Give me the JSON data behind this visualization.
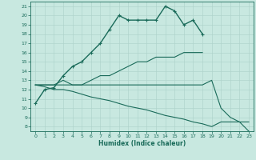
{
  "xlabel": "Humidex (Indice chaleur)",
  "bg_color": "#c8e8e0",
  "grid_color": "#b0d4cc",
  "line_color": "#1a6b5a",
  "xlim": [
    -0.5,
    23.5
  ],
  "ylim": [
    7.5,
    21.5
  ],
  "xticks": [
    0,
    1,
    2,
    3,
    4,
    5,
    6,
    7,
    8,
    9,
    10,
    11,
    12,
    13,
    14,
    15,
    16,
    17,
    18,
    19,
    20,
    21,
    22,
    23
  ],
  "yticks": [
    8,
    9,
    10,
    11,
    12,
    13,
    14,
    15,
    16,
    17,
    18,
    19,
    20,
    21
  ],
  "series": [
    {
      "x": [
        0,
        1,
        2,
        3,
        4,
        5,
        6,
        7,
        8,
        9,
        10,
        11,
        12,
        13,
        14,
        15,
        16,
        17,
        18
      ],
      "y": [
        10.5,
        12.0,
        12.2,
        13.5,
        14.5,
        15.0,
        16.0,
        17.0,
        18.5,
        20.0,
        19.5,
        19.5,
        19.5,
        19.5,
        21.0,
        20.5,
        19.0,
        19.5,
        18.0
      ],
      "marker": true,
      "lw": 1.0
    },
    {
      "x": [
        0,
        1,
        2,
        3,
        4,
        5,
        6,
        7,
        8,
        9,
        10,
        11,
        12,
        13,
        14,
        15,
        16,
        17,
        18
      ],
      "y": [
        12.5,
        12.5,
        12.5,
        13.0,
        12.5,
        12.5,
        13.0,
        13.5,
        13.5,
        14.0,
        14.5,
        15.0,
        15.0,
        15.5,
        15.5,
        15.5,
        16.0,
        16.0,
        16.0
      ],
      "marker": false,
      "lw": 0.8
    },
    {
      "x": [
        0,
        1,
        2,
        3,
        4,
        5,
        6,
        7,
        8,
        9,
        10,
        11,
        12,
        13,
        14,
        15,
        16,
        17,
        18,
        19,
        20,
        21,
        22,
        23
      ],
      "y": [
        12.5,
        12.5,
        12.5,
        12.5,
        12.5,
        12.5,
        12.5,
        12.5,
        12.5,
        12.5,
        12.5,
        12.5,
        12.5,
        12.5,
        12.5,
        12.5,
        12.5,
        12.5,
        12.5,
        13.0,
        10.0,
        9.0,
        8.5,
        7.5
      ],
      "marker": false,
      "lw": 0.8
    },
    {
      "x": [
        0,
        1,
        2,
        3,
        4,
        5,
        6,
        7,
        8,
        9,
        10,
        11,
        12,
        13,
        14,
        15,
        16,
        17,
        18,
        19,
        20,
        21,
        22,
        23
      ],
      "y": [
        12.5,
        12.3,
        12.0,
        12.0,
        11.8,
        11.5,
        11.2,
        11.0,
        10.8,
        10.5,
        10.2,
        10.0,
        9.8,
        9.5,
        9.2,
        9.0,
        8.8,
        8.5,
        8.3,
        8.0,
        8.5,
        8.5,
        8.5,
        8.5
      ],
      "marker": false,
      "lw": 0.8
    }
  ]
}
